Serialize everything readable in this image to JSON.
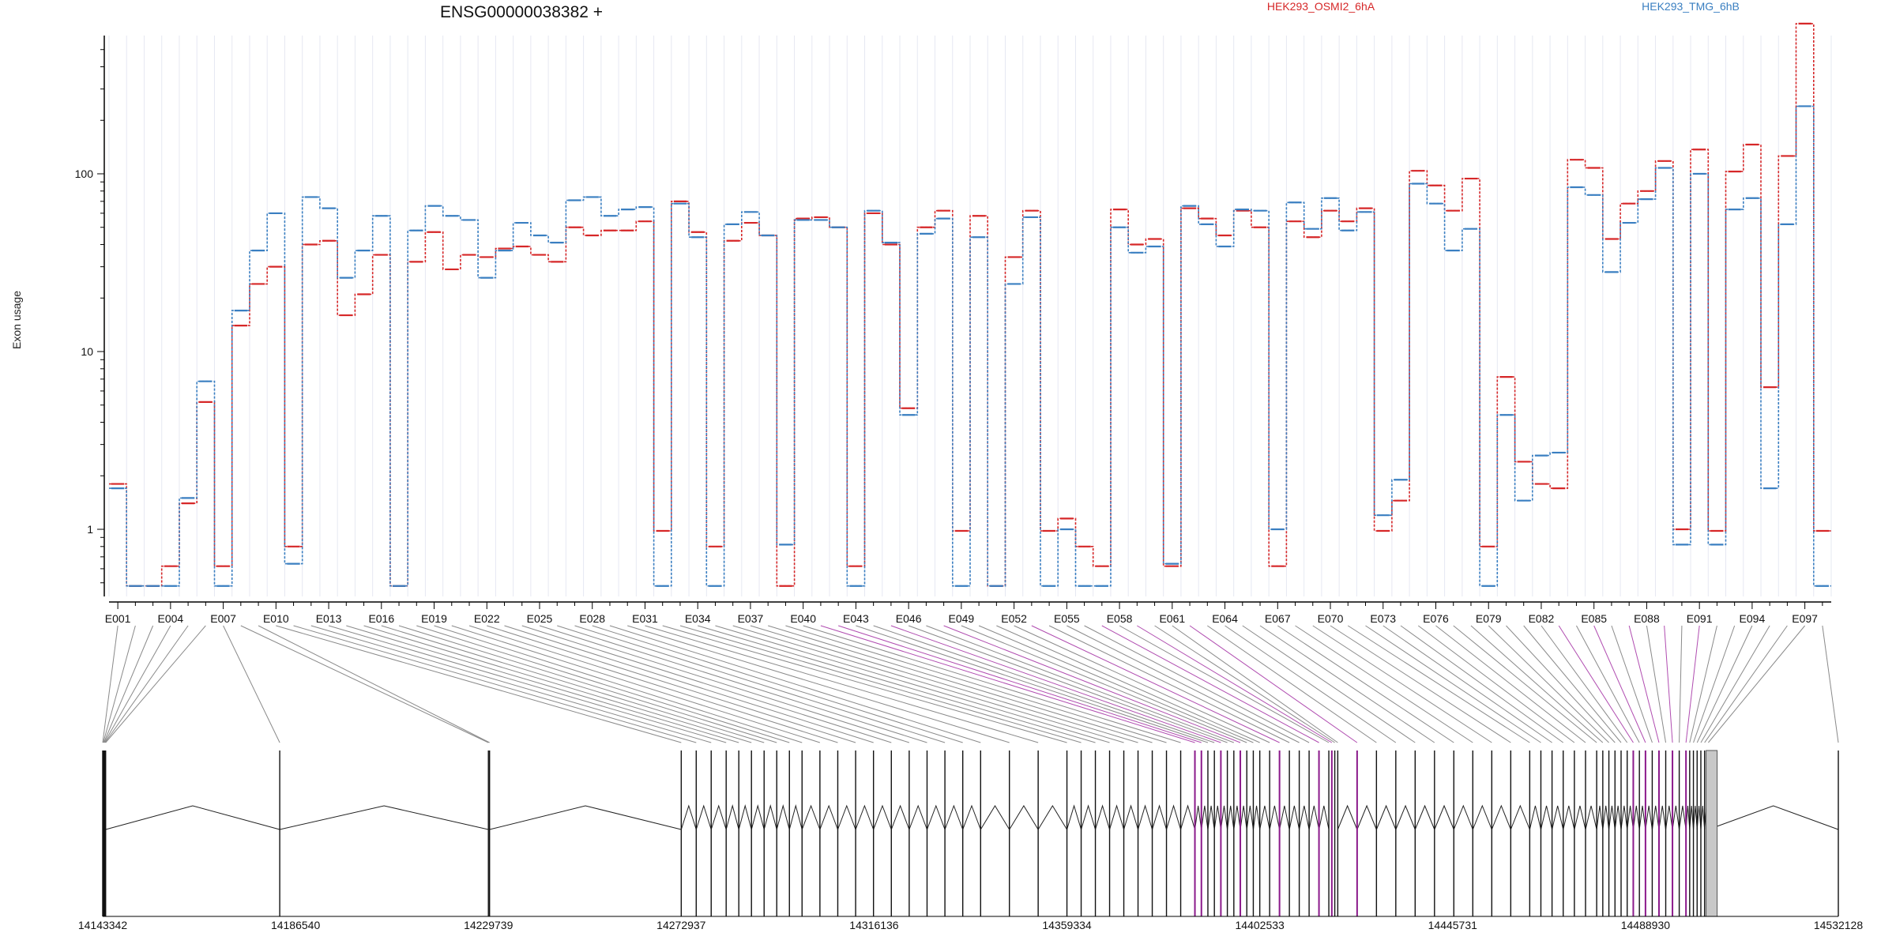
{
  "chart_data": {
    "type": "line",
    "title": "ENSG00000038382 +",
    "ylabel": "Exon usage",
    "xlabel": "",
    "y_scale": "log",
    "y_ticks": [
      {
        "value": 1,
        "label": "1"
      },
      {
        "value": 10,
        "label": "10"
      },
      {
        "value": 100,
        "label": "100"
      }
    ],
    "ylim": [
      0.35,
      1000
    ],
    "grid": "vertical, light",
    "legend_placement": "top",
    "exon_ids": [
      "E001",
      "E002",
      "E003",
      "E004",
      "E005",
      "E006",
      "E007",
      "E008",
      "E009",
      "E010",
      "E011",
      "E012",
      "E013",
      "E014",
      "E015",
      "E016",
      "E017",
      "E018",
      "E019",
      "E020",
      "E021",
      "E022",
      "E023",
      "E024",
      "E025",
      "E026",
      "E027",
      "E028",
      "E029",
      "E030",
      "E031",
      "E032",
      "E033",
      "E034",
      "E035",
      "E036",
      "E037",
      "E038",
      "E039",
      "E040",
      "E041",
      "E042",
      "E043",
      "E044",
      "E045",
      "E046",
      "E047",
      "E048",
      "E049",
      "E050",
      "E051",
      "E052",
      "E053",
      "E054",
      "E055",
      "E056",
      "E057",
      "E058",
      "E059",
      "E060",
      "E061",
      "E062",
      "E063",
      "E064",
      "E065",
      "E066",
      "E067",
      "E068",
      "E069",
      "E070",
      "E071",
      "E072",
      "E073",
      "E074",
      "E075",
      "E076",
      "E077",
      "E078",
      "E079",
      "E080",
      "E081",
      "E082",
      "E083",
      "E084",
      "E085",
      "E086",
      "E087",
      "E088",
      "E089",
      "E090",
      "E091",
      "E092",
      "E093",
      "E094",
      "E095",
      "E096",
      "E097",
      "E098"
    ],
    "x_tick_labels": [
      "E001",
      "E004",
      "E007",
      "E010",
      "E013",
      "E016",
      "E019",
      "E022",
      "E025",
      "E028",
      "E031",
      "E034",
      "E037",
      "E040",
      "E043",
      "E046",
      "E049",
      "E052",
      "E055",
      "E058",
      "E061",
      "E064",
      "E067",
      "E070",
      "E073",
      "E076",
      "E079",
      "E082",
      "E085",
      "E088",
      "E091",
      "E094",
      "E097"
    ],
    "series": [
      {
        "name": "HEK293_OSMI2_6hA",
        "color": "#d62728",
        "values": [
          1.8,
          0.48,
          0.48,
          0.62,
          1.4,
          5.2,
          0.62,
          14,
          24,
          30,
          0.8,
          40,
          42,
          16,
          21,
          35,
          0.48,
          32,
          47,
          29,
          35,
          34,
          38,
          39,
          35,
          32,
          50,
          45,
          48,
          48,
          54,
          0.98,
          70,
          47,
          0.8,
          42,
          53,
          45,
          0.48,
          56,
          57,
          50,
          0.62,
          60,
          40,
          4.8,
          50,
          62,
          0.98,
          58,
          0.48,
          34,
          62,
          0.98,
          1.15,
          0.8,
          0.62,
          63,
          40,
          43,
          0.62,
          64,
          56,
          45,
          62,
          50,
          0.62,
          54,
          44,
          62,
          54,
          64,
          0.98,
          1.45,
          104,
          86,
          62,
          94,
          0.8,
          7.2,
          2.4,
          1.8,
          1.7,
          120,
          108,
          43,
          68,
          80,
          118,
          1.0,
          137,
          0.98,
          103,
          146,
          6.3,
          126,
          700,
          0.98
        ]
      },
      {
        "name": "HEK293_TMG_6hB",
        "color": "#3a7fc1",
        "values": [
          1.7,
          0.48,
          0.48,
          0.48,
          1.5,
          6.8,
          0.48,
          17,
          37,
          60,
          0.64,
          74,
          64,
          26,
          37,
          58,
          0.48,
          48,
          66,
          58,
          55,
          26,
          37,
          53,
          45,
          41,
          71,
          74,
          58,
          63,
          65,
          0.48,
          68,
          44,
          0.48,
          52,
          61,
          45,
          0.82,
          55,
          55,
          50,
          0.48,
          62,
          41,
          4.4,
          46,
          56,
          0.48,
          44,
          0.48,
          24,
          57,
          0.48,
          1.0,
          0.48,
          0.48,
          50,
          36,
          39,
          0.64,
          66,
          52,
          39,
          63,
          62,
          1.0,
          69,
          49,
          73,
          48,
          61,
          1.2,
          1.9,
          88,
          68,
          37,
          49,
          0.48,
          4.4,
          1.45,
          2.6,
          2.7,
          84,
          76,
          28,
          53,
          72,
          108,
          0.82,
          100,
          0.82,
          63,
          73,
          1.7,
          52,
          240,
          0.48
        ]
      }
    ],
    "genomic_axis": {
      "ticks": [
        "14143342",
        "14186540",
        "14229739",
        "14272937",
        "14316136",
        "14359334",
        "14402533",
        "14445731",
        "14488930",
        "14532128"
      ],
      "range": [
        14143342,
        14532128
      ]
    }
  }
}
